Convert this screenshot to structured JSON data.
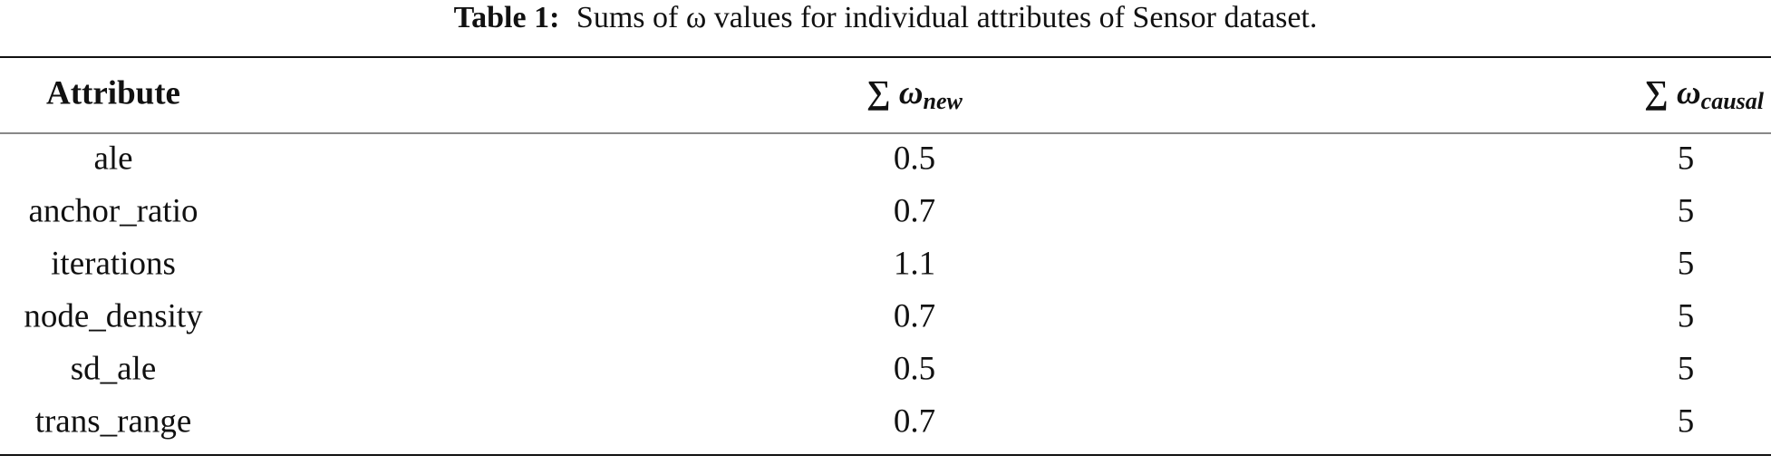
{
  "caption": {
    "label": "Table 1:",
    "text": "Sums of ω values for individual attributes of Sensor dataset."
  },
  "table": {
    "headers": [
      "Attribute",
      {
        "symbol": "∑ ω",
        "subscript": "new"
      },
      {
        "symbol": "∑ ω",
        "subscript": "causal"
      }
    ],
    "rows": [
      [
        "ale",
        0.5,
        5
      ],
      [
        "anchor_ratio",
        0.7,
        5
      ],
      [
        "iterations",
        1.1,
        5
      ],
      [
        "node_density",
        0.7,
        5
      ],
      [
        "sd_ale",
        0.5,
        5
      ],
      [
        "trans_range",
        0.7,
        5
      ]
    ]
  }
}
